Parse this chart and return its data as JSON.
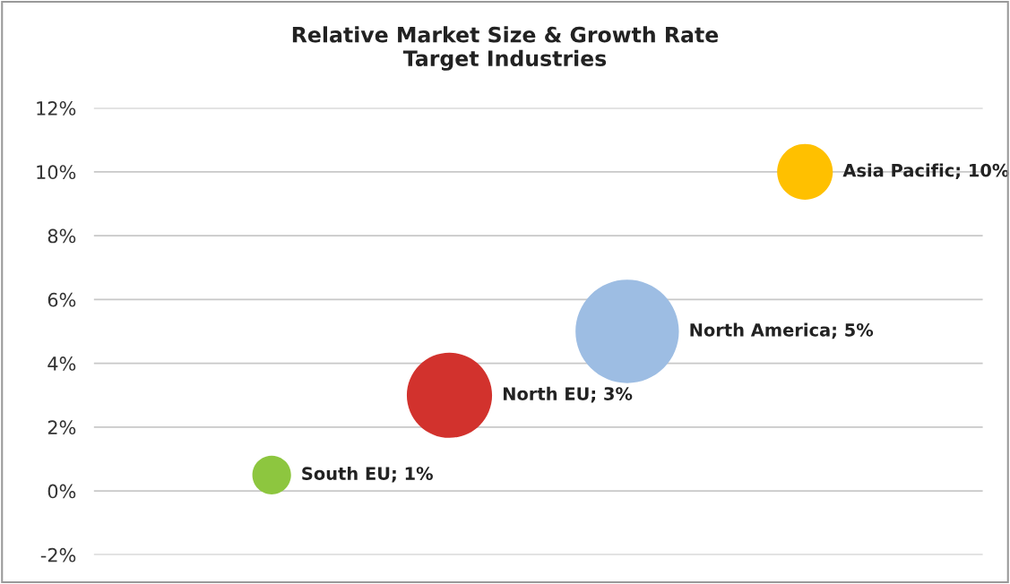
{
  "chart_data": {
    "type": "bubble",
    "title": "Relative Market Size & Growth Rate\nTarget Industries",
    "categories": [
      null,
      null,
      null,
      null
    ],
    "values": [
      0.5,
      3,
      5,
      10
    ],
    "sizes": [
      0.14,
      0.68,
      1,
      0.29
    ],
    "colors": [
      "#8dc63f",
      "#d2322d",
      "#9dbde3",
      "#ffc000"
    ],
    "value_labels": [
      "South EU; 1%",
      "North EU; 3%",
      "North America; 5%",
      "Asia Pacific; 10%"
    ],
    "ylim": [
      -2,
      12
    ],
    "yticks": [
      {
        "value": -2,
        "label": "-2%"
      },
      {
        "value": 0,
        "label": "0%"
      },
      {
        "value": 2,
        "label": "2%"
      },
      {
        "value": 4,
        "label": "4%"
      },
      {
        "value": 6,
        "label": "6%"
      },
      {
        "value": 8,
        "label": "8%"
      },
      {
        "value": 10,
        "label": "10%"
      },
      {
        "value": 12,
        "label": "12%"
      }
    ],
    "grid": "y",
    "tick_labels": "y"
  }
}
